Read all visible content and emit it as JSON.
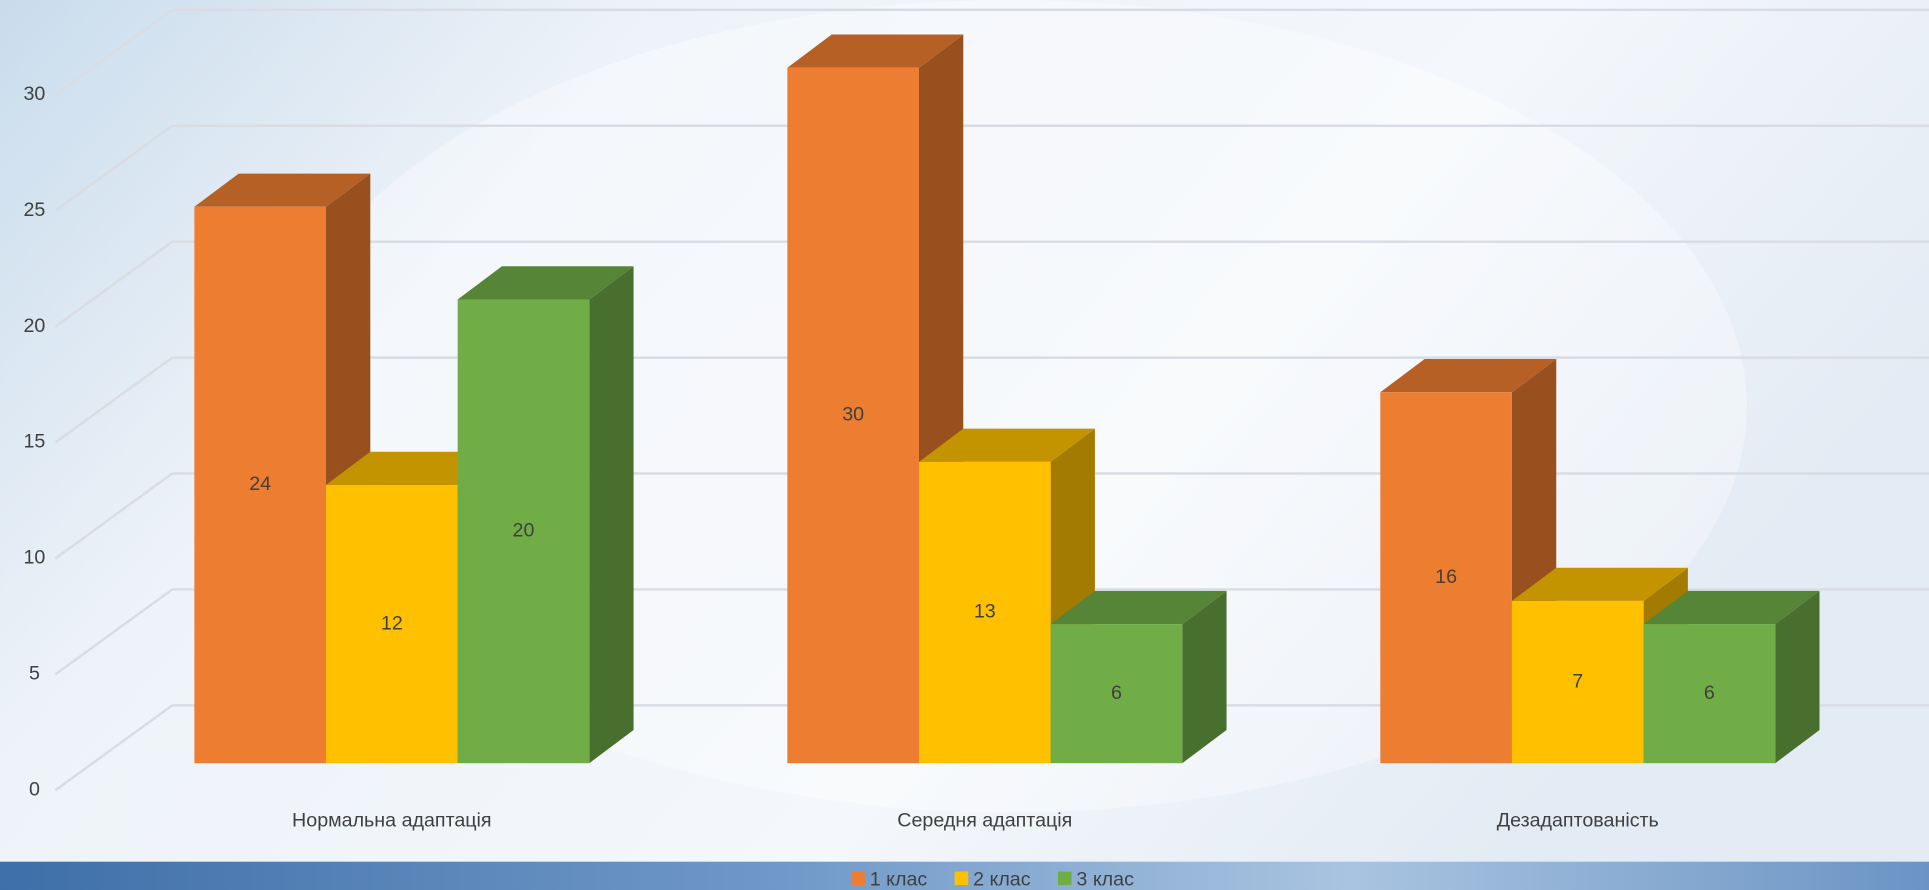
{
  "chart_data": {
    "type": "bar3d",
    "categories": [
      "Нормальна адаптація",
      "Середня адаптація",
      "Дезадаптованість"
    ],
    "series": [
      {
        "name": "1 клас",
        "color": "#ED7D31",
        "values": [
          24,
          30,
          16
        ]
      },
      {
        "name": "2 клас",
        "color": "#FFC000",
        "values": [
          12,
          13,
          7
        ]
      },
      {
        "name": "3 клас",
        "color": "#70AD47",
        "values": [
          20,
          6,
          6
        ]
      }
    ],
    "ylim": [
      0,
      30
    ],
    "yticks": [
      0,
      5,
      10,
      15,
      20,
      25,
      30
    ],
    "grid": true,
    "legend": "bottom"
  }
}
